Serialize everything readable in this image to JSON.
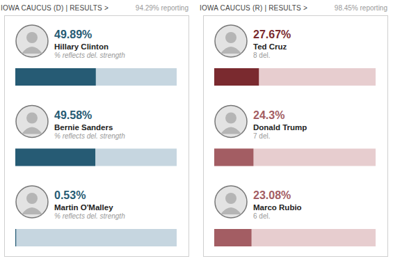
{
  "chart_data": [
    {
      "type": "bar",
      "orientation": "horizontal",
      "title": "IOWA CAUCUS (D) | RESULTS >",
      "subtitle": "94.29% reporting",
      "categories": [
        "Hillary Clinton",
        "Bernie Sanders",
        "Martin O'Malley"
      ],
      "values": [
        49.89,
        49.58,
        0.53
      ],
      "value_labels": [
        "49.89%",
        "49.58%",
        "0.53%"
      ],
      "annotations": [
        "% reflects del. strength",
        "% reflects del. strength",
        "% reflects del. strength"
      ],
      "colors": [
        "#265b74",
        "#265b74",
        "#265b74"
      ],
      "xlim": [
        0,
        100
      ],
      "tick_labels": false,
      "grid": false,
      "data_labels": true
    },
    {
      "type": "bar",
      "orientation": "horizontal",
      "title": "IOWA CAUCUS (R) | RESULTS >",
      "subtitle": "98.45% reporting",
      "categories": [
        "Ted Cruz",
        "Donald Trump",
        "Marco Rubio"
      ],
      "values": [
        27.67,
        24.3,
        23.08
      ],
      "value_labels": [
        "27.67%",
        "24.3%",
        "23.08%"
      ],
      "annotations": [
        "8 del.",
        "7 del.",
        "6 del."
      ],
      "colors": [
        "#7a2a2f",
        "#a35d63",
        "#a35d63"
      ],
      "xlim": [
        0,
        100
      ],
      "tick_labels": false,
      "grid": false,
      "data_labels": true
    }
  ]
}
